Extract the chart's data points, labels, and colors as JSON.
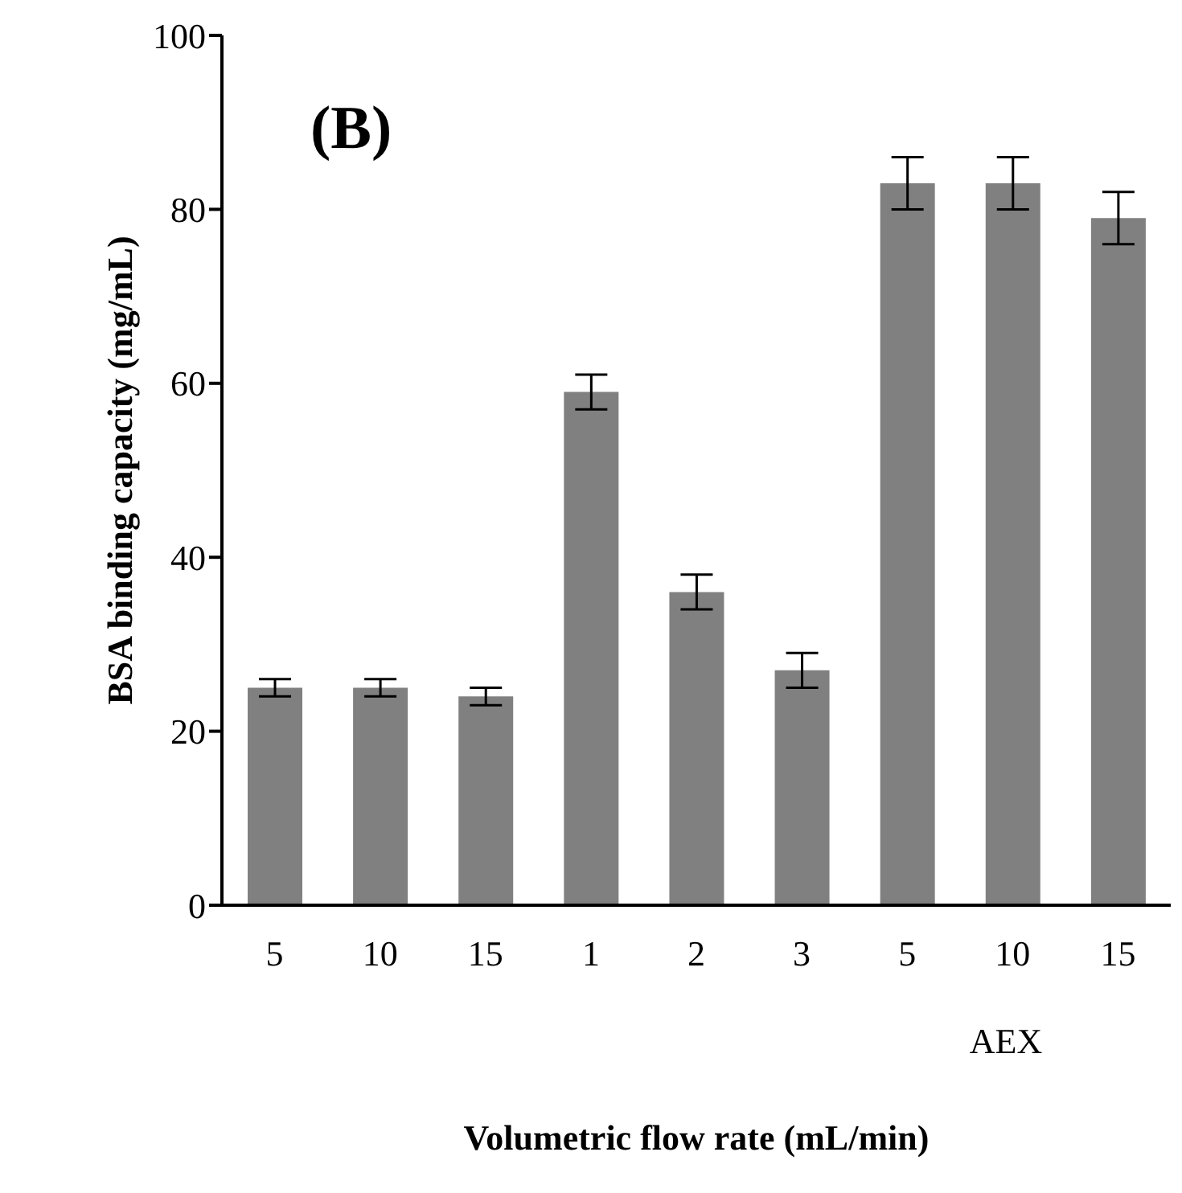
{
  "chart_data": {
    "type": "bar",
    "title": "(B)",
    "xlabel": "Volumetric flow rate (mL/min)",
    "ylabel": "BSA binding capacity (mg/mL)",
    "categories": [
      "5",
      "10",
      "15",
      "1",
      "2",
      "3",
      "5",
      "10",
      "15"
    ],
    "values": [
      25,
      25,
      24,
      59,
      36,
      27,
      83,
      83,
      79
    ],
    "errors": [
      1,
      1,
      1,
      2,
      2,
      2,
      3,
      3,
      3
    ],
    "color": "#808080",
    "ylim": [
      0,
      100
    ],
    "yticks": [
      0,
      20,
      40,
      60,
      80,
      100
    ],
    "annotations": [
      "AEX"
    ]
  }
}
